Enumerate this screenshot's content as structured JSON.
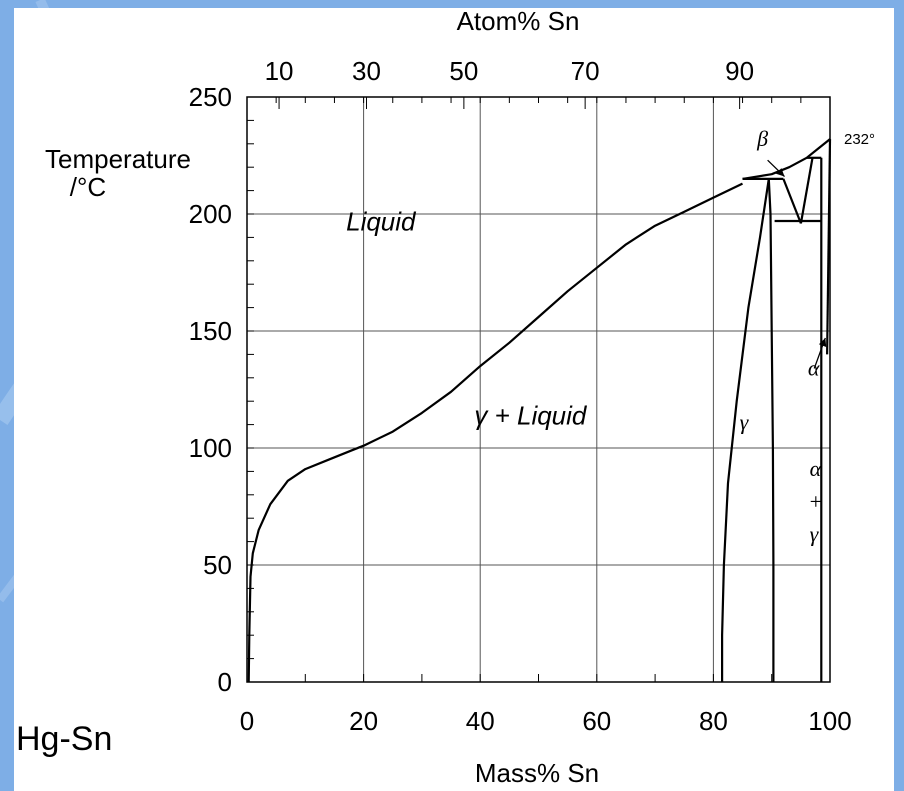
{
  "colors": {
    "background": "#7eaee6",
    "panel": "#ffffff",
    "ink": "#000000"
  },
  "system_label": "Hg-Sn",
  "chart_data": {
    "type": "line",
    "title": "",
    "xlabel": "Mass% Sn",
    "xlabel_top": "Atom% Sn",
    "ylabel_line1": "Temperature",
    "ylabel_line2": "/°C",
    "xlim": [
      0,
      100
    ],
    "ylim": [
      0,
      250
    ],
    "grid": true,
    "x_ticks": [
      0,
      20,
      40,
      60,
      80,
      100
    ],
    "y_ticks": [
      0,
      50,
      100,
      150,
      200,
      250
    ],
    "top_axis_ticks": [
      {
        "label": "10",
        "mass_pct": 5.5
      },
      {
        "label": "30",
        "mass_pct": 20.5
      },
      {
        "label": "50",
        "mass_pct": 37.2
      },
      {
        "label": "70",
        "mass_pct": 58.0
      },
      {
        "label": "90",
        "mass_pct": 84.5
      }
    ],
    "sn_melting_point_label": "232°",
    "series": [
      {
        "id": "liquidus-mercury",
        "points": [
          [
            0.3,
            0
          ],
          [
            0.4,
            20
          ],
          [
            0.6,
            45
          ],
          [
            1,
            55
          ],
          [
            2,
            65
          ],
          [
            4,
            76
          ],
          [
            7,
            86
          ],
          [
            10,
            91
          ],
          [
            14,
            95
          ],
          [
            18,
            99
          ],
          [
            20,
            101
          ],
          [
            25,
            107
          ],
          [
            30,
            115
          ],
          [
            35,
            124
          ],
          [
            40,
            135
          ],
          [
            45,
            145
          ],
          [
            50,
            156
          ],
          [
            55,
            167
          ],
          [
            60,
            177
          ],
          [
            65,
            187
          ],
          [
            70,
            195
          ],
          [
            75,
            201
          ],
          [
            80,
            207
          ],
          [
            85,
            213
          ]
        ]
      },
      {
        "id": "liquidus-tin",
        "points": [
          [
            85,
            215
          ],
          [
            90,
            217
          ],
          [
            93,
            220
          ],
          [
            96,
            224
          ],
          [
            98,
            228
          ],
          [
            100,
            232
          ]
        ]
      },
      {
        "id": "peritectic-215",
        "points": [
          [
            85,
            215
          ],
          [
            92,
            215
          ]
        ]
      },
      {
        "id": "gamma-left-solvus",
        "points": [
          [
            81.5,
            0
          ],
          [
            81.5,
            20
          ],
          [
            81.8,
            50
          ],
          [
            82.5,
            85
          ],
          [
            84,
            120
          ],
          [
            86,
            160
          ],
          [
            88,
            190
          ],
          [
            89.5,
            215
          ]
        ]
      },
      {
        "id": "gamma-right-solvus",
        "points": [
          [
            89.5,
            215
          ],
          [
            89.8,
            200
          ],
          [
            90,
            150
          ],
          [
            90.2,
            100
          ],
          [
            90.3,
            50
          ],
          [
            90.3,
            0
          ]
        ]
      },
      {
        "id": "beta-phase-left",
        "points": [
          [
            92,
            215
          ],
          [
            95,
            196
          ]
        ]
      },
      {
        "id": "beta-phase-right",
        "points": [
          [
            95,
            196
          ],
          [
            97,
            224
          ]
        ]
      },
      {
        "id": "eutectoid-197",
        "points": [
          [
            90.5,
            197
          ],
          [
            98.6,
            197
          ]
        ]
      },
      {
        "id": "peritectic-224",
        "points": [
          [
            96,
            224
          ],
          [
            98.5,
            224
          ]
        ]
      },
      {
        "id": "alpha-solvus",
        "points": [
          [
            98.5,
            224
          ],
          [
            98.5,
            140
          ],
          [
            98.5,
            0
          ]
        ]
      },
      {
        "id": "alpha-tin-boundary",
        "points": [
          [
            100,
            232
          ],
          [
            99.5,
            140
          ]
        ]
      }
    ],
    "region_labels": [
      {
        "text": "Liquid",
        "x": 17,
        "y": 193,
        "style": "italic"
      },
      {
        "text": "γ  +  Liquid",
        "x": 39,
        "y": 110,
        "style": "italic"
      },
      {
        "text": "γ",
        "x": 84.5,
        "y": 108,
        "style": "italic"
      },
      {
        "text": "β",
        "x": 87.5,
        "y": 229,
        "style": "italic"
      },
      {
        "text": "α",
        "x": 96.2,
        "y": 131,
        "style": "italic"
      },
      {
        "text": "α",
        "x": 96.5,
        "y": 88,
        "style": "italic"
      },
      {
        "text": "+",
        "x": 96.5,
        "y": 74,
        "style": "plain"
      },
      {
        "text": "γ",
        "x": 96.5,
        "y": 60,
        "style": "italic"
      }
    ],
    "arrows": [
      {
        "id": "beta-arrow",
        "from": [
          89.3,
          223
        ],
        "to": [
          92.2,
          216
        ]
      },
      {
        "id": "alpha-arrow",
        "from": [
          97.3,
          134
        ],
        "to": [
          99.2,
          147
        ]
      }
    ]
  }
}
